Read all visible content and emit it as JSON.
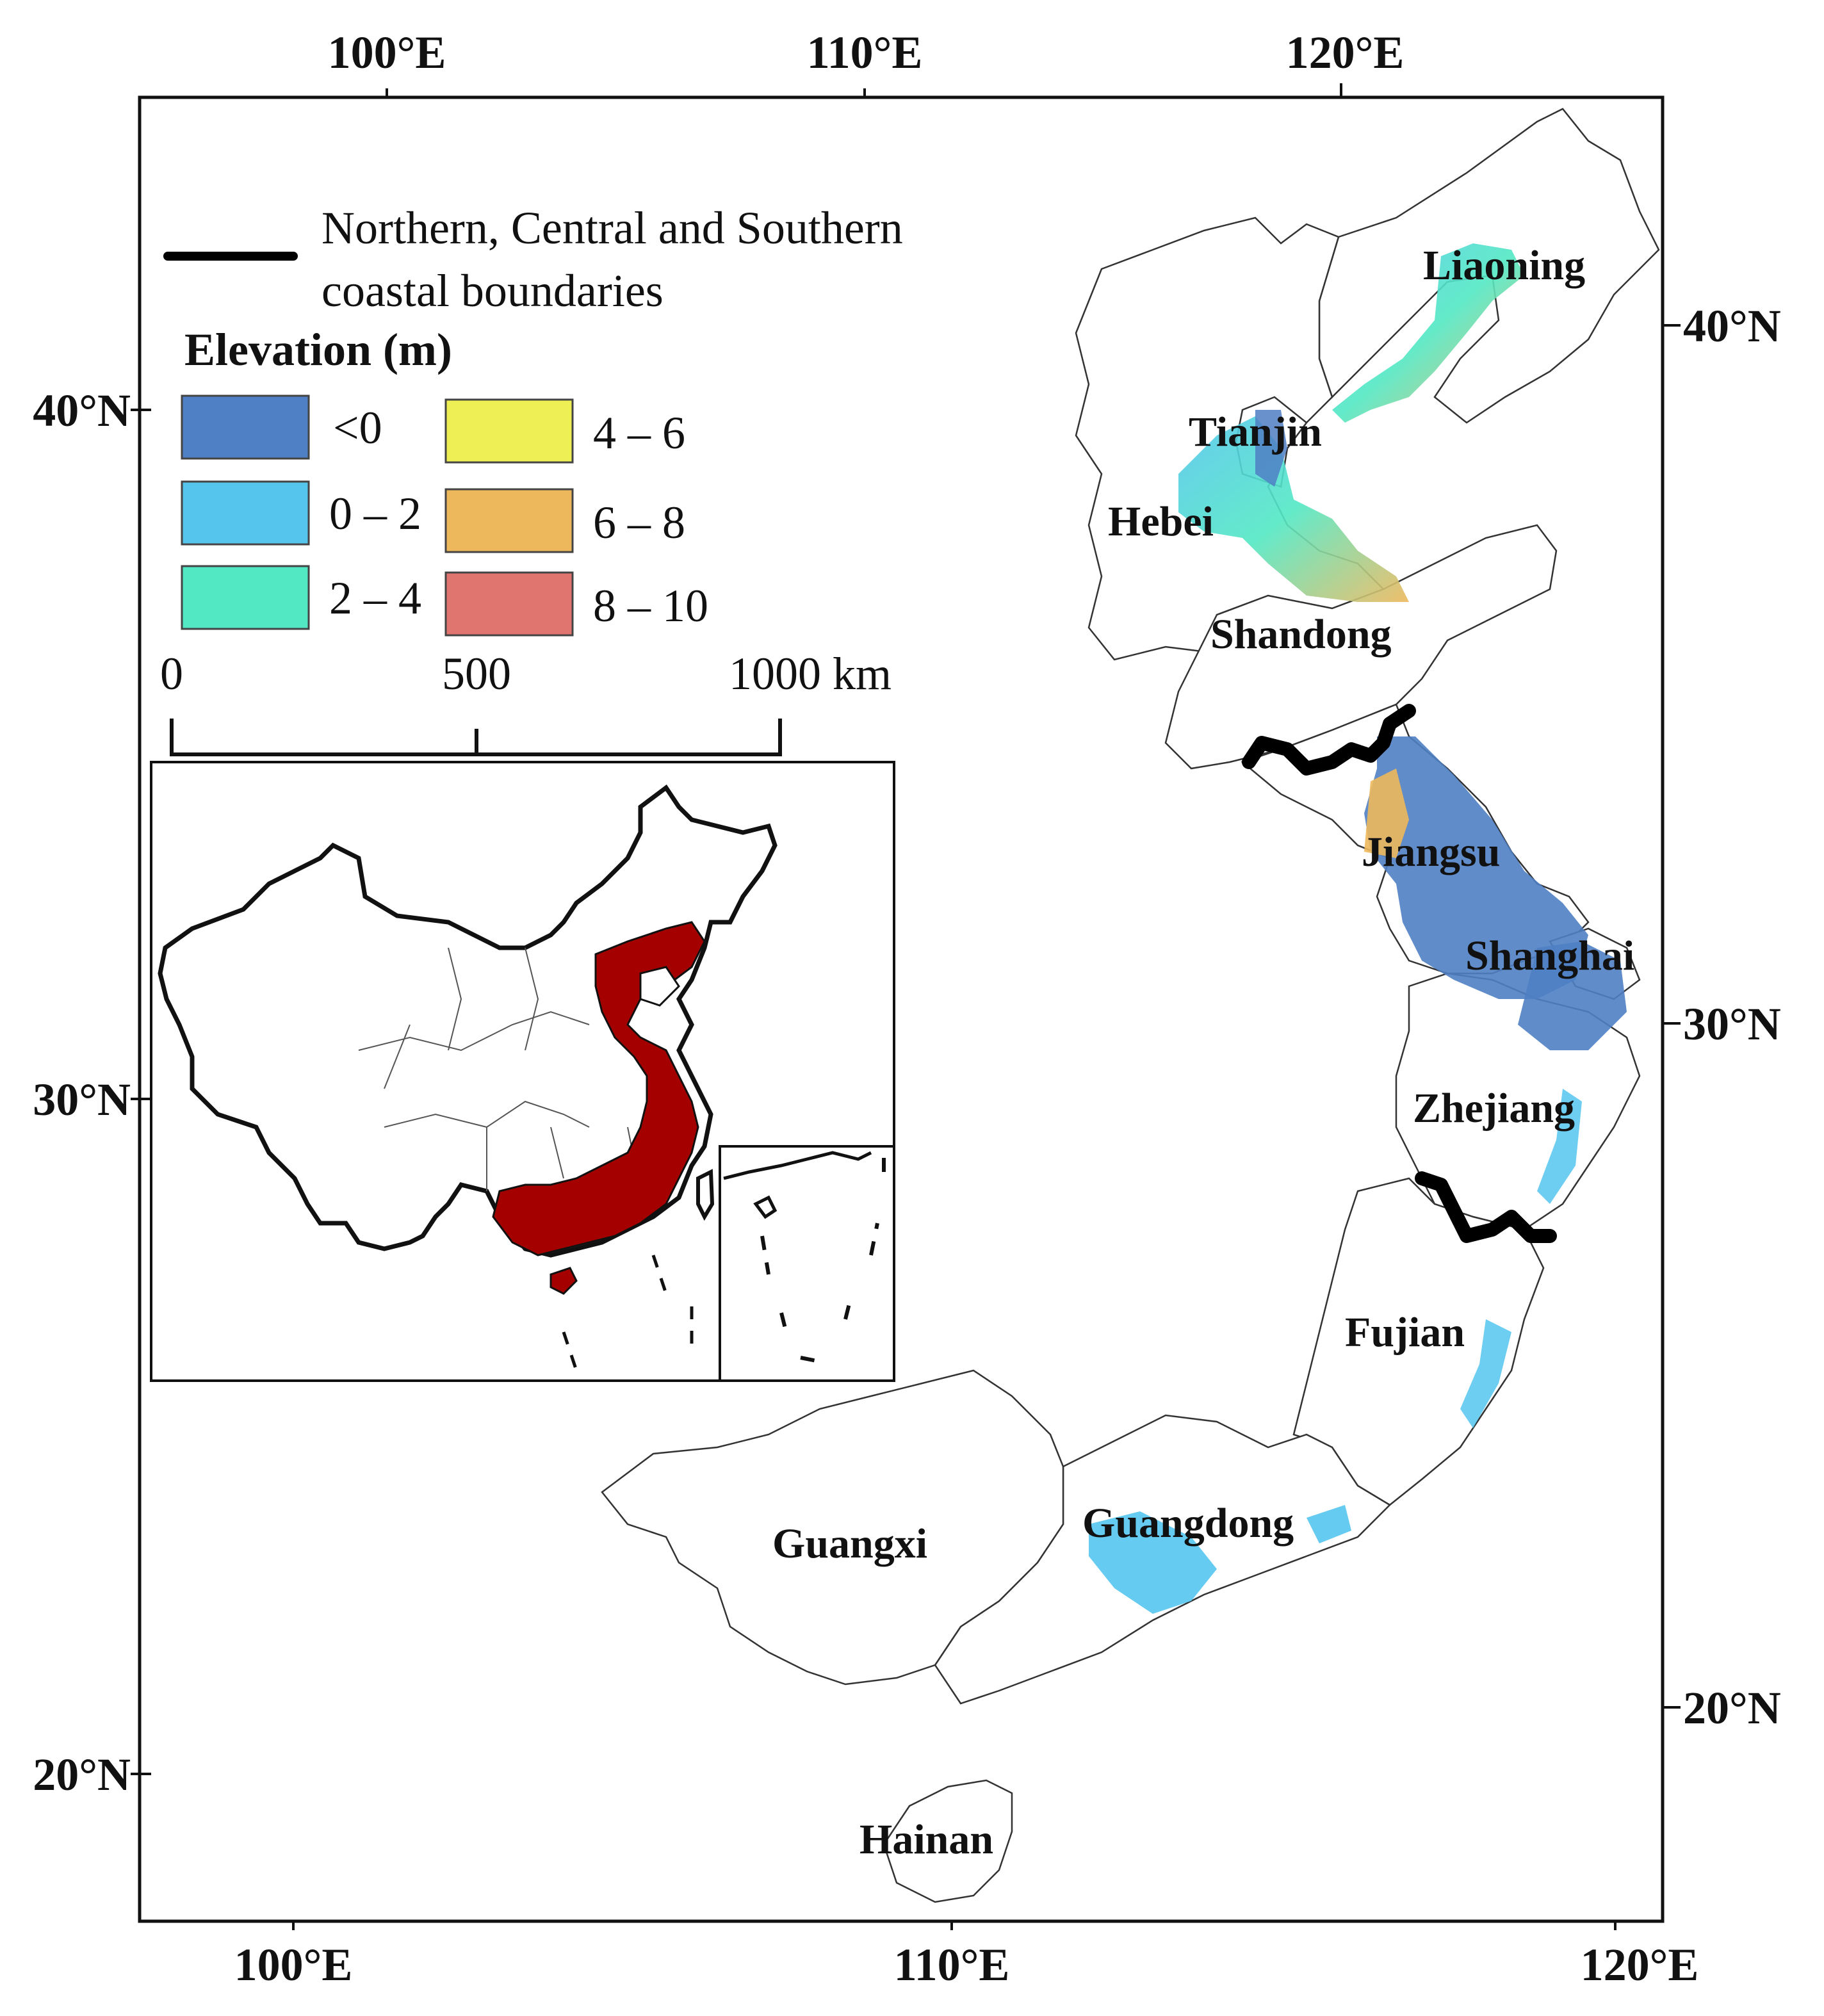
{
  "axes": {
    "top_lon_ticks": [
      "100°E",
      "110°E",
      "120°E"
    ],
    "bottom_lon_ticks": [
      "100°E",
      "110°E",
      "120°E"
    ],
    "left_lat_ticks": [
      "40°N",
      "30°N",
      "20°N"
    ],
    "right_lat_ticks": [
      "40°N",
      "30°N",
      "20°N"
    ]
  },
  "legend": {
    "boundary_label_line1": "Northern, Central and Southern",
    "boundary_label_line2": "coastal  boundaries",
    "elevation_title": "Elevation (m)",
    "classes": [
      {
        "label": "<0",
        "color": "#4f7fc4"
      },
      {
        "label": "0 – 2",
        "color": "#55c5ee"
      },
      {
        "label": "2 – 4",
        "color": "#52e8c4"
      },
      {
        "label": "4 – 6",
        "color": "#eeee55"
      },
      {
        "label": "6 – 8",
        "color": "#edb85c"
      },
      {
        "label": "8 – 10",
        "color": "#e07570"
      }
    ]
  },
  "scale_bar": {
    "labels": [
      "0",
      "500",
      "1000  km"
    ]
  },
  "provinces": {
    "liaoning": "Liaoning",
    "tianjin": "Tianjin",
    "hebei": "Hebei",
    "shandong": "Shandong",
    "jiangsu": "Jiangsu",
    "shanghai": "Shanghai",
    "zhejiang": "Zhejiang",
    "fujian": "Fujian",
    "guangdong": "Guangdong",
    "guangxi": "Guangxi",
    "hainan": "Hainan"
  },
  "colors": {
    "coastal_region_inset": "#a50000",
    "boundary_line": "#000000"
  }
}
